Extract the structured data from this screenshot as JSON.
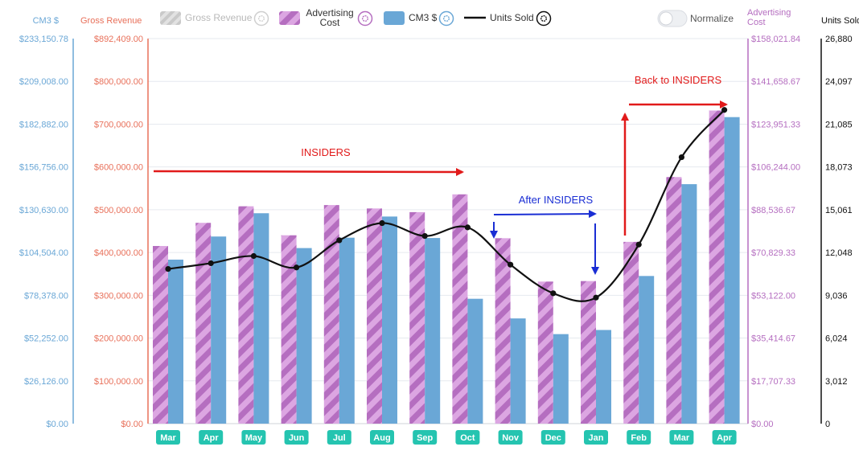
{
  "colors": {
    "cm3": "#6aa7d6",
    "gross": "#e8705a",
    "adcost_dark": "#b56ec0",
    "adcost_light": "#dca6e2",
    "units": "#111111",
    "teal_label_bg": "#25c4b0",
    "red_arrow": "#e11a1a",
    "blue_arrow": "#1a2ed4",
    "grid": "#e6e9ef"
  },
  "legend": {
    "items": [
      {
        "label": "Gross Revenue",
        "icon": "gray-swatch",
        "disabled": true
      },
      {
        "label_line1": "Advertising",
        "label_line2": "Cost",
        "icon": "purple-striped-swatch",
        "disabled": false
      },
      {
        "label": "CM3 $",
        "icon": "blue-swatch",
        "disabled": false
      },
      {
        "label": "Units Sold",
        "icon": "black-line",
        "disabled": false
      }
    ],
    "settings_icon": "gear-icon",
    "normalize_label": "Normalize"
  },
  "chart_data": {
    "type": "bar",
    "categories": [
      "Mar",
      "Apr",
      "May",
      "Jun",
      "Jul",
      "Aug",
      "Sep",
      "Oct",
      "Nov",
      "Dec",
      "Jan",
      "Feb",
      "Mar",
      "Apr"
    ],
    "series": [
      {
        "name": "Advertising Cost",
        "axis": "adcost",
        "values": [
          72900,
          82400,
          89200,
          77300,
          89700,
          88300,
          86800,
          94100,
          76100,
          58300,
          58500,
          74600,
          101200,
          128500
        ]
      },
      {
        "name": "CM3 $",
        "axis": "cm3",
        "values": [
          99300,
          113300,
          127400,
          106300,
          112600,
          125400,
          112400,
          75600,
          63700,
          54200,
          56700,
          89400,
          145000,
          185600
        ]
      },
      {
        "name": "Units Sold",
        "axis": "units",
        "type": "line",
        "values": [
          10800,
          11200,
          11700,
          10900,
          12800,
          14000,
          13100,
          13700,
          11100,
          9100,
          8800,
          12500,
          18600,
          21900
        ]
      }
    ],
    "axes": {
      "cm3": {
        "title": "CM3 $",
        "ticks": [
          "$0.00",
          "$26,126.00",
          "$52,252.00",
          "$78,378.00",
          "$104,504.00",
          "$130,630.00",
          "$156,756.00",
          "$182,882.00",
          "$209,008.00",
          "$233,150.78"
        ],
        "max": 233150.78
      },
      "gross": {
        "title": "Gross Revenue",
        "ticks": [
          "$0.00",
          "$100,000.00",
          "$200,000.00",
          "$300,000.00",
          "$400,000.00",
          "$500,000.00",
          "$600,000.00",
          "$700,000.00",
          "$800,000.00",
          "$892,409.00"
        ],
        "max": 892409
      },
      "adcost": {
        "title_line1": "Advertising",
        "title_line2": "Cost",
        "ticks": [
          "$0.00",
          "$17,707.33",
          "$35,414.67",
          "$53,122.00",
          "$70,829.33",
          "$88,536.67",
          "$106,244.00",
          "$123,951.33",
          "$141,658.67",
          "$158,021.84"
        ],
        "max": 158021.84
      },
      "units": {
        "title": "Units Sold",
        "ticks": [
          "0",
          "3,012",
          "6,024",
          "9,036",
          "12,048",
          "15,061",
          "18,073",
          "21,085",
          "24,097",
          "26,880"
        ],
        "max": 26880
      }
    },
    "annotations": [
      {
        "text": "INSIDERS",
        "color": "red"
      },
      {
        "text": "After INSIDERS",
        "color": "blue"
      },
      {
        "text": "Back to INSIDERS",
        "color": "red"
      }
    ],
    "legend_position": "top",
    "grid": true
  }
}
